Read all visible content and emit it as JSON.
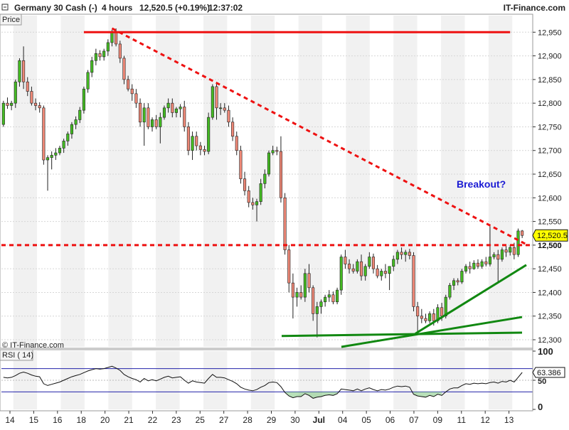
{
  "header": {
    "instrument": "Germany 30 Cash (-)",
    "timeframe": "4 hours",
    "last_change": "12,520.5 (+0.19%)",
    "time": "12:37:02",
    "brand": "IT-Finance.com"
  },
  "price_panel": {
    "label": "Price",
    "watermark": "© IT-Finance.com",
    "annotation": "Breakout?",
    "price_tag": "12,520.5",
    "level_tag": "12,500"
  },
  "rsi_panel": {
    "label": "RSI ( 14)",
    "value_tag": "63.386",
    "y_ticks": [
      "100",
      "50",
      "0"
    ]
  },
  "colors": {
    "up_candle": "#44bb22",
    "down_candle": "#ee8877",
    "resistance": "#ee1111",
    "trendline": "#118811",
    "annotation": "#1a1ad4",
    "rsi_line": "#111111",
    "rsi_bands": "#2222aa"
  },
  "chart_data": [
    {
      "type": "candlestick",
      "title": "Germany 30 Cash (-)",
      "timeframe": "4 hours",
      "ylabel": "Price",
      "ylim": [
        12285,
        12985
      ],
      "y_ticks": [
        12300,
        12350,
        12400,
        12450,
        12500,
        12550,
        12600,
        12650,
        12700,
        12750,
        12800,
        12850,
        12900,
        12950
      ],
      "y_tick_labels": [
        "12,300",
        "12,350",
        "12,400",
        "12,450",
        "12,500",
        "12,550",
        "12,600",
        "12,650",
        "12,700",
        "12,750",
        "12,800",
        "12,850",
        "12,900",
        "12,950"
      ],
      "x_tick_labels": [
        "14",
        "15",
        "16",
        "18",
        "20",
        "21",
        "22",
        "23",
        "25",
        "27",
        "28",
        "29",
        "30",
        "Jul",
        "04",
        "05",
        "06",
        "07",
        "09",
        "11",
        "12",
        "13"
      ],
      "last_price": 12520.5,
      "candles": [
        {
          "o": 12755,
          "h": 12805,
          "l": 12750,
          "c": 12800
        },
        {
          "o": 12800,
          "h": 12812,
          "l": 12788,
          "c": 12795
        },
        {
          "o": 12795,
          "h": 12805,
          "l": 12785,
          "c": 12800
        },
        {
          "o": 12800,
          "h": 12850,
          "l": 12790,
          "c": 12845
        },
        {
          "o": 12845,
          "h": 12895,
          "l": 12835,
          "c": 12890
        },
        {
          "o": 12890,
          "h": 12920,
          "l": 12830,
          "c": 12845
        },
        {
          "o": 12845,
          "h": 12855,
          "l": 12815,
          "c": 12825
        },
        {
          "o": 12825,
          "h": 12835,
          "l": 12795,
          "c": 12800
        },
        {
          "o": 12800,
          "h": 12810,
          "l": 12785,
          "c": 12795
        },
        {
          "o": 12795,
          "h": 12802,
          "l": 12780,
          "c": 12790
        },
        {
          "o": 12790,
          "h": 12795,
          "l": 12670,
          "c": 12680
        },
        {
          "o": 12680,
          "h": 12690,
          "l": 12615,
          "c": 12685
        },
        {
          "o": 12685,
          "h": 12698,
          "l": 12660,
          "c": 12690
        },
        {
          "o": 12690,
          "h": 12705,
          "l": 12680,
          "c": 12695
        },
        {
          "o": 12695,
          "h": 12710,
          "l": 12690,
          "c": 12705
        },
        {
          "o": 12705,
          "h": 12725,
          "l": 12695,
          "c": 12720
        },
        {
          "o": 12720,
          "h": 12740,
          "l": 12710,
          "c": 12735
        },
        {
          "o": 12735,
          "h": 12760,
          "l": 12725,
          "c": 12755
        },
        {
          "o": 12755,
          "h": 12772,
          "l": 12745,
          "c": 12765
        },
        {
          "o": 12765,
          "h": 12792,
          "l": 12758,
          "c": 12785
        },
        {
          "o": 12785,
          "h": 12835,
          "l": 12778,
          "c": 12830
        },
        {
          "o": 12830,
          "h": 12870,
          "l": 12822,
          "c": 12865
        },
        {
          "o": 12865,
          "h": 12898,
          "l": 12855,
          "c": 12890
        },
        {
          "o": 12890,
          "h": 12915,
          "l": 12880,
          "c": 12905
        },
        {
          "o": 12905,
          "h": 12912,
          "l": 12890,
          "c": 12898
        },
        {
          "o": 12898,
          "h": 12915,
          "l": 12890,
          "c": 12910
        },
        {
          "o": 12910,
          "h": 12935,
          "l": 12900,
          "c": 12928
        },
        {
          "o": 12928,
          "h": 12955,
          "l": 12920,
          "c": 12950
        },
        {
          "o": 12950,
          "h": 12958,
          "l": 12920,
          "c": 12925
        },
        {
          "o": 12925,
          "h": 12932,
          "l": 12885,
          "c": 12895
        },
        {
          "o": 12895,
          "h": 12900,
          "l": 12840,
          "c": 12850
        },
        {
          "o": 12850,
          "h": 12858,
          "l": 12825,
          "c": 12830
        },
        {
          "o": 12830,
          "h": 12840,
          "l": 12805,
          "c": 12820
        },
        {
          "o": 12820,
          "h": 12830,
          "l": 12790,
          "c": 12800
        },
        {
          "o": 12800,
          "h": 12810,
          "l": 12750,
          "c": 12760
        },
        {
          "o": 12760,
          "h": 12800,
          "l": 12710,
          "c": 12790
        },
        {
          "o": 12790,
          "h": 12800,
          "l": 12745,
          "c": 12750
        },
        {
          "o": 12750,
          "h": 12770,
          "l": 12740,
          "c": 12765
        },
        {
          "o": 12765,
          "h": 12775,
          "l": 12745,
          "c": 12750
        },
        {
          "o": 12750,
          "h": 12780,
          "l": 12715,
          "c": 12770
        },
        {
          "o": 12770,
          "h": 12795,
          "l": 12765,
          "c": 12790
        },
        {
          "o": 12790,
          "h": 12810,
          "l": 12780,
          "c": 12800
        },
        {
          "o": 12800,
          "h": 12810,
          "l": 12770,
          "c": 12780
        },
        {
          "o": 12780,
          "h": 12792,
          "l": 12770,
          "c": 12788
        },
        {
          "o": 12788,
          "h": 12798,
          "l": 12770,
          "c": 12792
        },
        {
          "o": 12792,
          "h": 12805,
          "l": 12740,
          "c": 12750
        },
        {
          "o": 12750,
          "h": 12760,
          "l": 12690,
          "c": 12700
        },
        {
          "o": 12700,
          "h": 12740,
          "l": 12680,
          "c": 12730
        },
        {
          "o": 12730,
          "h": 12740,
          "l": 12700,
          "c": 12710
        },
        {
          "o": 12710,
          "h": 12718,
          "l": 12690,
          "c": 12702
        },
        {
          "o": 12702,
          "h": 12710,
          "l": 12690,
          "c": 12698
        },
        {
          "o": 12698,
          "h": 12780,
          "l": 12692,
          "c": 12770
        },
        {
          "o": 12770,
          "h": 12840,
          "l": 12765,
          "c": 12835
        },
        {
          "o": 12835,
          "h": 12845,
          "l": 12765,
          "c": 12790
        },
        {
          "o": 12790,
          "h": 12800,
          "l": 12775,
          "c": 12790
        },
        {
          "o": 12790,
          "h": 12800,
          "l": 12780,
          "c": 12785
        },
        {
          "o": 12785,
          "h": 12795,
          "l": 12750,
          "c": 12760
        },
        {
          "o": 12760,
          "h": 12770,
          "l": 12720,
          "c": 12730
        },
        {
          "o": 12730,
          "h": 12740,
          "l": 12690,
          "c": 12700
        },
        {
          "o": 12700,
          "h": 12710,
          "l": 12630,
          "c": 12640
        },
        {
          "o": 12640,
          "h": 12655,
          "l": 12605,
          "c": 12615
        },
        {
          "o": 12615,
          "h": 12625,
          "l": 12580,
          "c": 12590
        },
        {
          "o": 12590,
          "h": 12600,
          "l": 12575,
          "c": 12585
        },
        {
          "o": 12585,
          "h": 12598,
          "l": 12550,
          "c": 12592
        },
        {
          "o": 12592,
          "h": 12640,
          "l": 12585,
          "c": 12630
        },
        {
          "o": 12630,
          "h": 12660,
          "l": 12620,
          "c": 12650
        },
        {
          "o": 12650,
          "h": 12700,
          "l": 12645,
          "c": 12695
        },
        {
          "o": 12695,
          "h": 12710,
          "l": 12690,
          "c": 12700
        },
        {
          "o": 12700,
          "h": 12708,
          "l": 12690,
          "c": 12698
        },
        {
          "o": 12698,
          "h": 12730,
          "l": 12590,
          "c": 12600
        },
        {
          "o": 12600,
          "h": 12610,
          "l": 12480,
          "c": 12490
        },
        {
          "o": 12490,
          "h": 12500,
          "l": 12400,
          "c": 12420
        },
        {
          "o": 12420,
          "h": 12440,
          "l": 12345,
          "c": 12390
        },
        {
          "o": 12390,
          "h": 12410,
          "l": 12370,
          "c": 12400
        },
        {
          "o": 12400,
          "h": 12415,
          "l": 12385,
          "c": 12390
        },
        {
          "o": 12390,
          "h": 12450,
          "l": 12380,
          "c": 12440
        },
        {
          "o": 12440,
          "h": 12460,
          "l": 12400,
          "c": 12410
        },
        {
          "o": 12410,
          "h": 12415,
          "l": 12340,
          "c": 12355
        },
        {
          "o": 12355,
          "h": 12380,
          "l": 12305,
          "c": 12370
        },
        {
          "o": 12370,
          "h": 12385,
          "l": 12355,
          "c": 12380
        },
        {
          "o": 12380,
          "h": 12395,
          "l": 12370,
          "c": 12390
        },
        {
          "o": 12390,
          "h": 12405,
          "l": 12380,
          "c": 12395
        },
        {
          "o": 12395,
          "h": 12402,
          "l": 12375,
          "c": 12380
        },
        {
          "o": 12380,
          "h": 12410,
          "l": 12375,
          "c": 12405
        },
        {
          "o": 12405,
          "h": 12480,
          "l": 12395,
          "c": 12475
        },
        {
          "o": 12475,
          "h": 12490,
          "l": 12450,
          "c": 12460
        },
        {
          "o": 12460,
          "h": 12470,
          "l": 12440,
          "c": 12450
        },
        {
          "o": 12450,
          "h": 12460,
          "l": 12440,
          "c": 12445
        },
        {
          "o": 12445,
          "h": 12470,
          "l": 12440,
          "c": 12465
        },
        {
          "o": 12465,
          "h": 12480,
          "l": 12425,
          "c": 12435
        },
        {
          "o": 12435,
          "h": 12460,
          "l": 12425,
          "c": 12455
        },
        {
          "o": 12455,
          "h": 12485,
          "l": 12450,
          "c": 12475
        },
        {
          "o": 12475,
          "h": 12482,
          "l": 12440,
          "c": 12450
        },
        {
          "o": 12450,
          "h": 12458,
          "l": 12430,
          "c": 12435
        },
        {
          "o": 12435,
          "h": 12450,
          "l": 12425,
          "c": 12445
        },
        {
          "o": 12445,
          "h": 12460,
          "l": 12430,
          "c": 12440
        },
        {
          "o": 12440,
          "h": 12450,
          "l": 12405,
          "c": 12455
        },
        {
          "o": 12455,
          "h": 12478,
          "l": 12445,
          "c": 12470
        },
        {
          "o": 12470,
          "h": 12490,
          "l": 12460,
          "c": 12485
        },
        {
          "o": 12485,
          "h": 12495,
          "l": 12470,
          "c": 12480
        },
        {
          "o": 12480,
          "h": 12490,
          "l": 12465,
          "c": 12485
        },
        {
          "o": 12485,
          "h": 12492,
          "l": 12470,
          "c": 12478
        },
        {
          "o": 12478,
          "h": 12485,
          "l": 12360,
          "c": 12370
        },
        {
          "o": 12370,
          "h": 12380,
          "l": 12310,
          "c": 12350
        },
        {
          "o": 12350,
          "h": 12365,
          "l": 12335,
          "c": 12345
        },
        {
          "o": 12345,
          "h": 12355,
          "l": 12335,
          "c": 12340
        },
        {
          "o": 12340,
          "h": 12360,
          "l": 12335,
          "c": 12355
        },
        {
          "o": 12355,
          "h": 12365,
          "l": 12330,
          "c": 12340
        },
        {
          "o": 12340,
          "h": 12375,
          "l": 12335,
          "c": 12368
        },
        {
          "o": 12368,
          "h": 12378,
          "l": 12340,
          "c": 12350
        },
        {
          "o": 12350,
          "h": 12395,
          "l": 12345,
          "c": 12390
        },
        {
          "o": 12390,
          "h": 12420,
          "l": 12385,
          "c": 12415
        },
        {
          "o": 12415,
          "h": 12430,
          "l": 12405,
          "c": 12425
        },
        {
          "o": 12425,
          "h": 12430,
          "l": 12415,
          "c": 12422
        },
        {
          "o": 12422,
          "h": 12450,
          "l": 12418,
          "c": 12445
        },
        {
          "o": 12445,
          "h": 12460,
          "l": 12440,
          "c": 12455
        },
        {
          "o": 12455,
          "h": 12465,
          "l": 12440,
          "c": 12450
        },
        {
          "o": 12450,
          "h": 12468,
          "l": 12448,
          "c": 12462
        },
        {
          "o": 12462,
          "h": 12470,
          "l": 12450,
          "c": 12455
        },
        {
          "o": 12455,
          "h": 12470,
          "l": 12450,
          "c": 12465
        },
        {
          "o": 12465,
          "h": 12475,
          "l": 12455,
          "c": 12460
        },
        {
          "o": 12460,
          "h": 12540,
          "l": 12455,
          "c": 12475
        },
        {
          "o": 12475,
          "h": 12485,
          "l": 12470,
          "c": 12480
        },
        {
          "o": 12480,
          "h": 12490,
          "l": 12420,
          "c": 12470
        },
        {
          "o": 12470,
          "h": 12495,
          "l": 12465,
          "c": 12490
        },
        {
          "o": 12490,
          "h": 12498,
          "l": 12475,
          "c": 12485
        },
        {
          "o": 12485,
          "h": 12500,
          "l": 12478,
          "c": 12495
        },
        {
          "o": 12495,
          "h": 12505,
          "l": 12470,
          "c": 12480
        },
        {
          "o": 12480,
          "h": 12535,
          "l": 12475,
          "c": 12530
        },
        {
          "o": 12530,
          "h": 12532,
          "l": 12515,
          "c": 12520.5
        }
      ]
    },
    {
      "type": "line",
      "title": "RSI ( 14)",
      "ylim": [
        0,
        100
      ],
      "y_ticks": [
        0,
        50,
        100
      ],
      "levels": [
        30,
        70
      ],
      "last_value": 63.386,
      "values": [
        55,
        54,
        55,
        58,
        62,
        64,
        62,
        59,
        57,
        56,
        44,
        41,
        43,
        45,
        47,
        50,
        53,
        56,
        58,
        60,
        63,
        66,
        68,
        70,
        69,
        70,
        72,
        74,
        71,
        67,
        60,
        56,
        53,
        51,
        47,
        53,
        49,
        51,
        49,
        52,
        55,
        57,
        54,
        55,
        56,
        50,
        45,
        49,
        47,
        46,
        45,
        53,
        60,
        55,
        55,
        54,
        51,
        48,
        44,
        38,
        35,
        33,
        32,
        34,
        38,
        41,
        46,
        47,
        46,
        39,
        29,
        23,
        20,
        22,
        22,
        27,
        24,
        19,
        21,
        22,
        24,
        25,
        24,
        27,
        35,
        34,
        33,
        32,
        35,
        32,
        35,
        37,
        34,
        32,
        34,
        33,
        35,
        38,
        40,
        39,
        40,
        38,
        26,
        23,
        22,
        21,
        24,
        22,
        26,
        24,
        30,
        35,
        37,
        37,
        41,
        44,
        43,
        45,
        44,
        45,
        44,
        46,
        47,
        45,
        48,
        47,
        50,
        47,
        55,
        63.386
      ]
    }
  ]
}
